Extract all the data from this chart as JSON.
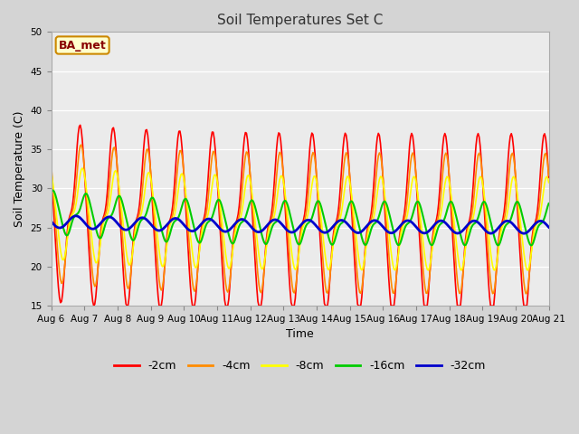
{
  "title": "Soil Temperatures Set C",
  "xlabel": "Time",
  "ylabel": "Soil Temperature (C)",
  "ylim": [
    15,
    50
  ],
  "yticks": [
    15,
    20,
    25,
    30,
    35,
    40,
    45,
    50
  ],
  "fig_facecolor": "#d4d4d4",
  "plot_bg_color": "#ebebeb",
  "annotation_text": "BA_met",
  "annotation_bg": "#ffffcc",
  "annotation_border": "#cc8800",
  "annotation_text_color": "#880000",
  "series_colors": {
    "-2cm": "#ff0000",
    "-4cm": "#ff8c00",
    "-8cm": "#ffff00",
    "-16cm": "#00cc00",
    "-32cm": "#0000cc"
  },
  "series_linewidths": {
    "-2cm": 1.2,
    "-4cm": 1.2,
    "-8cm": 1.2,
    "-16cm": 1.5,
    "-32cm": 2.0
  },
  "x_tick_labels": [
    "Aug 6",
    "Aug 7",
    "Aug 8",
    "Aug 9",
    "Aug 10",
    "Aug 11",
    "Aug 12",
    "Aug 13",
    "Aug 14",
    "Aug 15",
    "Aug 16",
    "Aug 17",
    "Aug 18",
    "Aug 19",
    "Aug 20",
    "Aug 21"
  ],
  "legend_labels": [
    "-2cm",
    "-4cm",
    "-8cm",
    "-16cm",
    "-32cm"
  ]
}
